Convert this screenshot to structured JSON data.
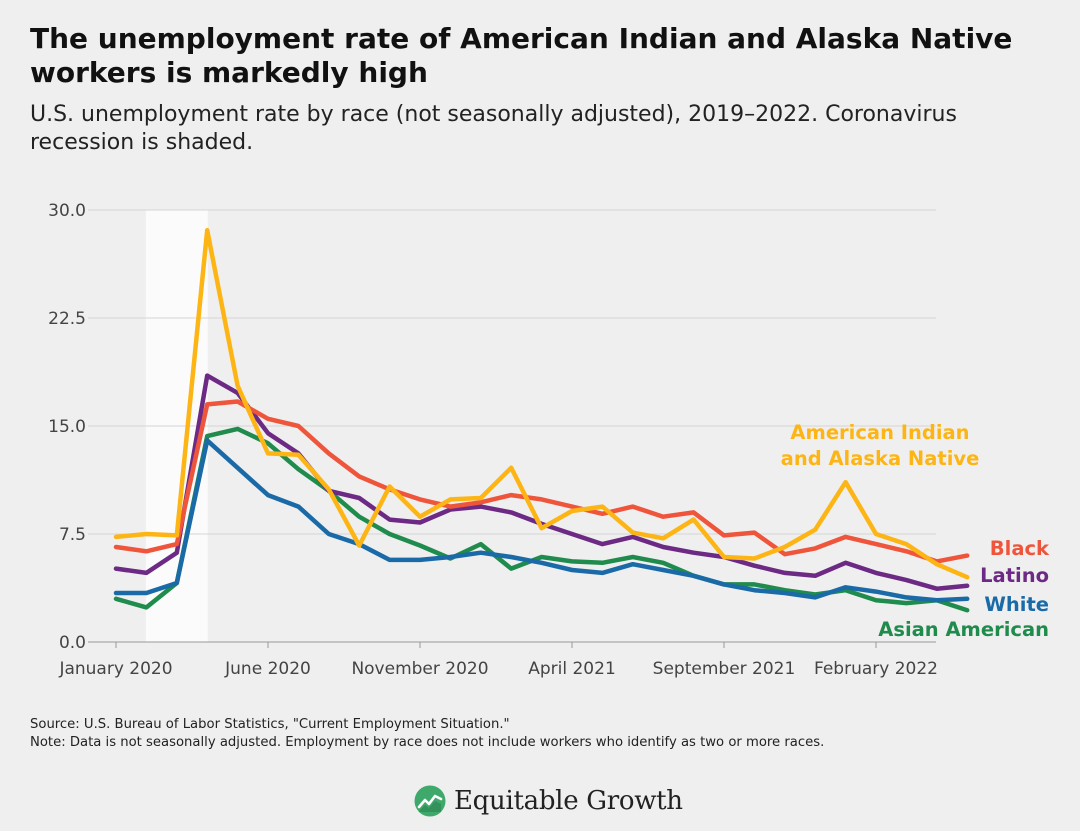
{
  "header": {
    "title": "The unemployment rate of American Indian and Alaska Native workers is markedly high",
    "subtitle": "U.S. unemployment rate by race (not seasonally adjusted), 2019–2022. Coronavirus recession is shaded."
  },
  "footer": {
    "source": "Source: U.S. Bureau of Labor Statistics, \"Current Employment Situation.\"",
    "note": "Note: Data is not seasonally adjusted. Employment by race does not include workers who identify as two or more races.",
    "logo_text": "Equitable Growth"
  },
  "chart_data": {
    "type": "line",
    "x_start": "January 2020",
    "x_tick_labels": [
      "January 2020",
      "June 2020",
      "November 2020",
      "April 2021",
      "September 2021",
      "February 2022"
    ],
    "y_ticks": [
      "0.0",
      "7.5",
      "15.0",
      "22.5",
      "30.0"
    ],
    "ylim": [
      0,
      30
    ],
    "grid": true,
    "shaded_recession": {
      "start": "February 2020",
      "end": "April 2020"
    },
    "series": [
      {
        "name": "American Indian and Alaska Native",
        "color": "#fdb515",
        "label_lines": [
          "American Indian",
          "and Alaska Native"
        ],
        "values": [
          7.3,
          7.5,
          7.4,
          28.6,
          17.8,
          13.1,
          13.0,
          10.6,
          6.7,
          10.8,
          8.7,
          9.9,
          10.0,
          12.1,
          7.9,
          9.1,
          9.4,
          7.6,
          7.2,
          8.5,
          5.9,
          5.8,
          6.6,
          7.8,
          11.1,
          7.5,
          6.8,
          5.4,
          4.5
        ]
      },
      {
        "name": "Black",
        "color": "#ef553b",
        "label_lines": [
          "Black"
        ],
        "values": [
          6.6,
          6.3,
          6.8,
          16.5,
          16.7,
          15.5,
          15.0,
          13.1,
          11.5,
          10.6,
          9.9,
          9.4,
          9.7,
          10.2,
          9.9,
          9.4,
          8.9,
          9.4,
          8.7,
          9.0,
          7.4,
          7.6,
          6.1,
          6.5,
          7.3,
          6.8,
          6.3,
          5.6,
          6.0
        ]
      },
      {
        "name": "Latino",
        "color": "#6c2a84",
        "label_lines": [
          "Latino"
        ],
        "values": [
          5.1,
          4.8,
          6.2,
          18.5,
          17.3,
          14.5,
          13.1,
          10.5,
          10.0,
          8.5,
          8.3,
          9.2,
          9.4,
          9.0,
          8.2,
          7.5,
          6.8,
          7.3,
          6.6,
          6.2,
          5.9,
          5.3,
          4.8,
          4.6,
          5.5,
          4.8,
          4.3,
          3.7,
          3.9
        ]
      },
      {
        "name": "White",
        "color": "#1a6aa8",
        "label_lines": [
          "White"
        ],
        "values": [
          3.4,
          3.4,
          4.1,
          14.0,
          12.1,
          10.2,
          9.4,
          7.5,
          6.8,
          5.7,
          5.7,
          5.9,
          6.2,
          5.9,
          5.5,
          5.0,
          4.8,
          5.4,
          5.0,
          4.6,
          4.0,
          3.6,
          3.4,
          3.1,
          3.8,
          3.5,
          3.1,
          2.9,
          3.0
        ]
      },
      {
        "name": "Asian American",
        "color": "#1f8b4c",
        "label_lines": [
          "Asian American"
        ],
        "values": [
          3.0,
          2.4,
          4.1,
          14.3,
          14.8,
          13.8,
          12.0,
          10.5,
          8.7,
          7.5,
          6.7,
          5.8,
          6.8,
          5.1,
          5.9,
          5.6,
          5.5,
          5.9,
          5.5,
          4.6,
          4.0,
          4.0,
          3.6,
          3.3,
          3.6,
          2.9,
          2.7,
          2.9,
          2.2
        ]
      }
    ]
  }
}
